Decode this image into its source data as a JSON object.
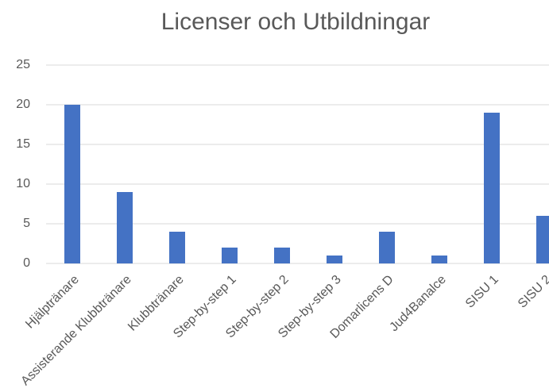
{
  "chart_data": {
    "type": "bar",
    "title": "Licenser och Utbildningar",
    "categories": [
      "Hjälptränare",
      "Assisterande Klubbtränare",
      "Klubbtränare",
      "Step-by-step 1",
      "Step-by-step 2",
      "Step-by-step 3",
      "Domarlicens D",
      "Jud4Banalce",
      "SISU 1",
      "SISU 2"
    ],
    "values": [
      20,
      9,
      4,
      2,
      2,
      1,
      4,
      1,
      19,
      6
    ],
    "color": "#4472c4",
    "ylim": [
      0,
      25
    ],
    "yticks": [
      0,
      5,
      10,
      15,
      20,
      25
    ],
    "grid": true
  }
}
